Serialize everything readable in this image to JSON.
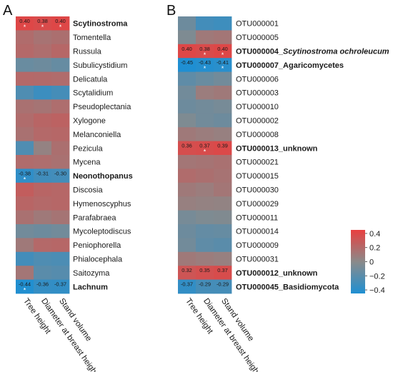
{
  "chart_data": [
    {
      "panel": "A",
      "type": "heatmap",
      "columns": [
        "Tree height",
        "Diameter at breast height",
        "Stand volume"
      ],
      "rows": [
        {
          "label": "Scytinostroma",
          "bold": true,
          "values": [
            0.4,
            0.38,
            0.4
          ],
          "labels": [
            "0.40",
            "0.38",
            "0.40"
          ],
          "stars": [
            true,
            true,
            true
          ]
        },
        {
          "label": "Tomentella",
          "bold": false,
          "values": [
            0.18,
            0.14,
            0.16
          ]
        },
        {
          "label": "Russula",
          "bold": false,
          "values": [
            0.2,
            0.17,
            0.21
          ]
        },
        {
          "label": "Subulicystidium",
          "bold": false,
          "values": [
            -0.14,
            -0.12,
            -0.15
          ]
        },
        {
          "label": "Delicatula",
          "bold": false,
          "values": [
            0.2,
            0.19,
            0.18
          ]
        },
        {
          "label": "Scytalidium",
          "bold": false,
          "values": [
            -0.25,
            -0.33,
            -0.29
          ]
        },
        {
          "label": "Pseudoplectania",
          "bold": false,
          "values": [
            0.15,
            0.13,
            0.17
          ]
        },
        {
          "label": "Xylogone",
          "bold": false,
          "values": [
            0.18,
            0.22,
            0.24
          ]
        },
        {
          "label": "Melanconiella",
          "bold": false,
          "values": [
            0.15,
            0.2,
            0.21
          ]
        },
        {
          "label": "Pezicula",
          "bold": false,
          "values": [
            -0.25,
            0.05,
            0.16
          ]
        },
        {
          "label": "Mycena",
          "bold": false,
          "values": [
            0.18,
            0.17,
            0.15
          ]
        },
        {
          "label": "Neonothopanus",
          "bold": true,
          "values": [
            -0.38,
            -0.31,
            -0.3
          ],
          "labels": [
            "-0.38",
            "-0.31",
            "-0.30"
          ],
          "stars": [
            true,
            false,
            false
          ]
        },
        {
          "label": "Discosia",
          "bold": false,
          "values": [
            0.27,
            0.22,
            0.21
          ]
        },
        {
          "label": "Hymenoscyphus",
          "bold": false,
          "values": [
            0.22,
            0.2,
            0.21
          ]
        },
        {
          "label": "Parafabraea",
          "bold": false,
          "values": [
            0.15,
            0.1,
            0.13
          ]
        },
        {
          "label": "Mycoleptodiscus",
          "bold": false,
          "values": [
            -0.1,
            -0.12,
            -0.1
          ]
        },
        {
          "label": "Peniophorella",
          "bold": false,
          "values": [
            0.1,
            0.2,
            0.21
          ]
        },
        {
          "label": "Phialocephala",
          "bold": false,
          "values": [
            -0.3,
            -0.25,
            -0.26
          ]
        },
        {
          "label": "Saitozyma",
          "bold": false,
          "values": [
            0.12,
            -0.2,
            -0.22
          ]
        },
        {
          "label": "Lachnum",
          "bold": true,
          "values": [
            -0.44,
            -0.36,
            -0.37
          ],
          "labels": [
            "-0.44",
            "-0.36",
            "-0.37"
          ],
          "stars": [
            true,
            false,
            false
          ]
        }
      ]
    },
    {
      "panel": "B",
      "type": "heatmap",
      "columns": [
        "Tree height",
        "Diameter at breast height",
        "Stand volume"
      ],
      "rows": [
        {
          "label": "OTU000001",
          "bold": false,
          "values": [
            -0.12,
            -0.3,
            -0.32
          ]
        },
        {
          "label": "OTU000005",
          "bold": false,
          "values": [
            -0.05,
            0.1,
            0.12
          ]
        },
        {
          "label": "OTU000004_",
          "italic_part": "Scytinostroma ochroleucum",
          "bold": true,
          "values": [
            0.4,
            0.38,
            0.4
          ],
          "labels": [
            "0.40",
            "0.38",
            "0.40"
          ],
          "stars": [
            false,
            true,
            true
          ]
        },
        {
          "label": "OTU000007_Agaricomycetes",
          "bold": true,
          "values": [
            -0.45,
            -0.43,
            -0.41
          ],
          "labels": [
            "-0.45",
            "-0.43",
            "-0.41"
          ],
          "stars": [
            false,
            true,
            true
          ]
        },
        {
          "label": "OTU000006",
          "bold": false,
          "values": [
            -0.18,
            -0.14,
            -0.1
          ]
        },
        {
          "label": "OTU000003",
          "bold": false,
          "values": [
            -0.1,
            0.08,
            0.1
          ]
        },
        {
          "label": "OTU000010",
          "bold": false,
          "values": [
            -0.12,
            -0.1,
            -0.08
          ]
        },
        {
          "label": "OTU000002",
          "bold": false,
          "values": [
            -0.05,
            -0.1,
            -0.12
          ]
        },
        {
          "label": "OTU000008",
          "bold": false,
          "values": [
            0.1,
            0.08,
            0.06
          ]
        },
        {
          "label": "OTU000013_unknown",
          "bold": true,
          "values": [
            0.36,
            0.37,
            0.39
          ],
          "labels": [
            "0.36",
            "0.37",
            "0.39"
          ],
          "stars": [
            false,
            true,
            false
          ]
        },
        {
          "label": "OTU000021",
          "bold": false,
          "values": [
            0.12,
            0.13,
            0.15
          ]
        },
        {
          "label": "OTU000015",
          "bold": false,
          "values": [
            0.18,
            0.16,
            0.14
          ]
        },
        {
          "label": "OTU000030",
          "bold": false,
          "values": [
            0.1,
            0.08,
            0.12
          ]
        },
        {
          "label": "OTU000029",
          "bold": false,
          "values": [
            0.06,
            0.05,
            0.04
          ]
        },
        {
          "label": "OTU000011",
          "bold": false,
          "values": [
            -0.08,
            -0.05,
            -0.04
          ]
        },
        {
          "label": "OTU000014",
          "bold": false,
          "values": [
            -0.12,
            -0.16,
            -0.15
          ]
        },
        {
          "label": "OTU000009",
          "bold": false,
          "values": [
            -0.1,
            -0.18,
            -0.2
          ]
        },
        {
          "label": "OTU000031",
          "bold": false,
          "values": [
            0.1,
            0.08,
            0.06
          ]
        },
        {
          "label": "OTU000012_unknown",
          "bold": true,
          "values": [
            0.32,
            0.35,
            0.37
          ],
          "labels": [
            "0.32",
            "0.35",
            "0.37"
          ],
          "stars": [
            false,
            false,
            false
          ]
        },
        {
          "label": "OTU000045_Basidiomycota",
          "bold": true,
          "values": [
            -0.37,
            -0.29,
            -0.29
          ],
          "labels": [
            "-0.37",
            "-0.29",
            "-0.29"
          ],
          "stars": [
            false,
            false,
            false
          ]
        }
      ]
    }
  ],
  "legend": {
    "ticks": [
      0.4,
      0.2,
      0,
      -0.2,
      -0.4
    ],
    "tick_labels": [
      "0.4",
      "0.2",
      "0",
      "−0.2",
      "−0.4"
    ],
    "range": [
      -0.45,
      0.45
    ]
  },
  "colors": {
    "high": "#e83f3f",
    "mid": "#8a8a8a",
    "low": "#1f8fd2"
  },
  "star_symbol": "*"
}
